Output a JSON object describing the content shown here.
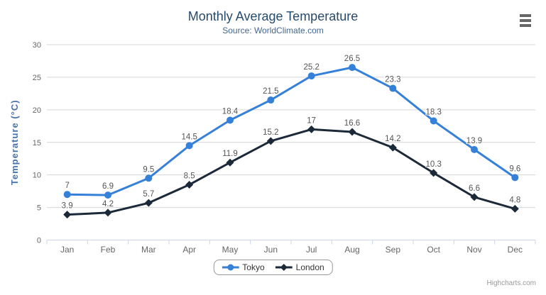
{
  "chart_data": {
    "type": "line",
    "title": "Monthly Average Temperature",
    "subtitle": "Source: WorldClimate.com",
    "xlabel": "",
    "ylabel": "Temperature (°C)",
    "categories": [
      "Jan",
      "Feb",
      "Mar",
      "Apr",
      "May",
      "Jun",
      "Jul",
      "Aug",
      "Sep",
      "Oct",
      "Nov",
      "Dec"
    ],
    "yticks": [
      0,
      5,
      10,
      15,
      20,
      25,
      30
    ],
    "ylim": [
      0,
      30
    ],
    "grid": true,
    "legend_position": "bottom-center",
    "series": [
      {
        "name": "Tokyo",
        "color": "#3580d8",
        "marker": "circle",
        "values": [
          7,
          6.9,
          9.5,
          14.5,
          18.4,
          21.5,
          25.2,
          26.5,
          23.3,
          18.3,
          13.9,
          9.6
        ],
        "labels": [
          "7",
          "6.9",
          "9.5",
          "14.5",
          "18.4",
          "21.5",
          "25.2",
          "26.5",
          "23.3",
          "18.3",
          "13.9",
          "9.6"
        ]
      },
      {
        "name": "London",
        "color": "#1b2939",
        "marker": "diamond",
        "values": [
          3.9,
          4.2,
          5.7,
          8.5,
          11.9,
          15.2,
          17,
          16.6,
          14.2,
          10.3,
          6.6,
          4.8
        ],
        "labels": [
          "3.9",
          "4.2",
          "5.7",
          "8.5",
          "11.9",
          "15.2",
          "17",
          "16.6",
          "14.2",
          "10.3",
          "6.6",
          "4.8"
        ]
      }
    ]
  },
  "icons": {
    "context_menu": "hamburger-icon"
  },
  "credits": "Highcharts.com",
  "style_colors": {
    "title": "#274b6d",
    "subtitle": "#44678f",
    "axis_title": "#4a72a7",
    "axis_labels": "#666666",
    "data_labels": "#555555",
    "gridline": "#d6d6d6",
    "axis_line": "#ccd6eb",
    "legend_border": "#999999"
  }
}
